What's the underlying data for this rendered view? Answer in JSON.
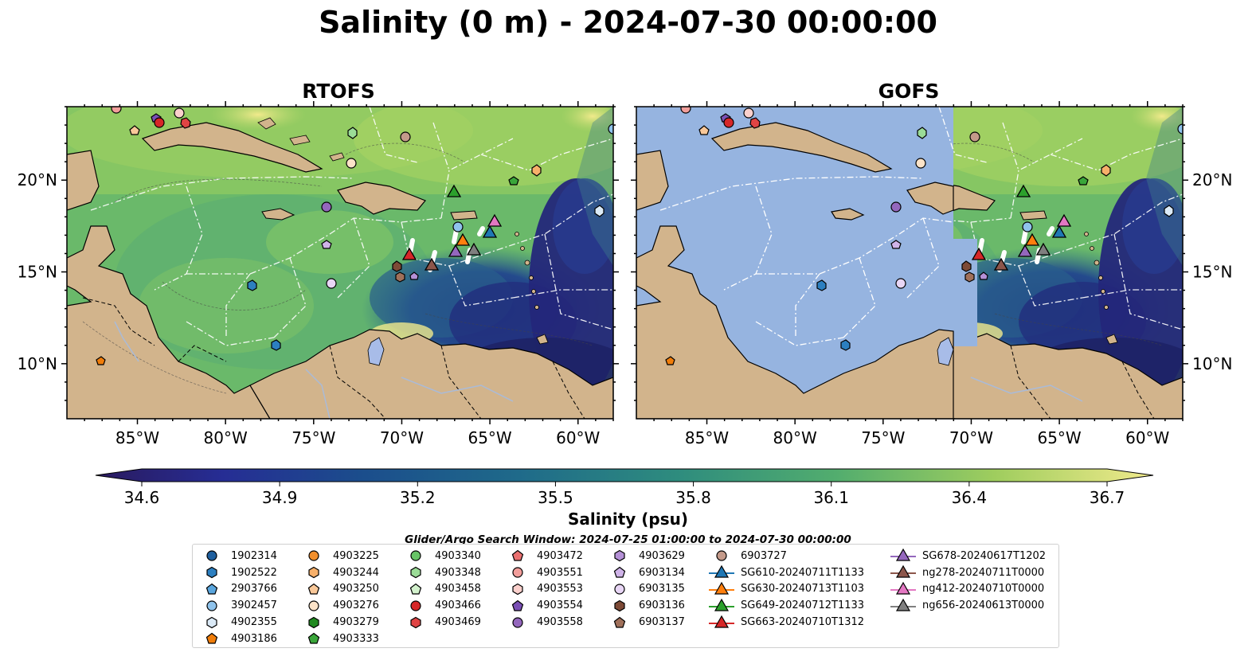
{
  "title": "Salinity (0 m) - 2024-07-30 00:00:00",
  "panels": [
    {
      "title": "RTOFS"
    },
    {
      "title": "GOFS"
    }
  ],
  "lon_labels": [
    "85°W",
    "80°W",
    "75°W",
    "70°W",
    "65°W",
    "60°W"
  ],
  "lat_labels": [
    "20°N",
    "15°N",
    "10°N"
  ],
  "colorbar": {
    "ticks": [
      "34.6",
      "34.9",
      "35.2",
      "35.5",
      "35.8",
      "36.1",
      "36.4",
      "36.7"
    ],
    "label": "Salinity (psu)",
    "vmin": 34.6,
    "vmax": 36.7,
    "colormap": "haline",
    "extend": "both"
  },
  "search_window": "Glider/Argo Search Window: 2024-07-25 01:00:00 to 2024-07-30 00:00:00",
  "legend": [
    {
      "label": "1902314",
      "marker": "circle",
      "color": "#1f5f9e"
    },
    {
      "label": "1902522",
      "marker": "hexagon",
      "color": "#2c7fc0"
    },
    {
      "label": "2903766",
      "marker": "pentagon",
      "color": "#5aa6de"
    },
    {
      "label": "3902457",
      "marker": "circle",
      "color": "#8fc3ec"
    },
    {
      "label": "4902355",
      "marker": "hexagon",
      "color": "#dbeaf7"
    },
    {
      "label": "4903186",
      "marker": "pentagon",
      "color": "#f07d0a"
    },
    {
      "label": "4903225",
      "marker": "circle",
      "color": "#f28f2c"
    },
    {
      "label": "4903244",
      "marker": "hexagon",
      "color": "#f7b06a"
    },
    {
      "label": "4903250",
      "marker": "pentagon",
      "color": "#f9c899"
    },
    {
      "label": "4903276",
      "marker": "circle",
      "color": "#fce3c8"
    },
    {
      "label": "4903279",
      "marker": "hexagon",
      "color": "#218a21"
    },
    {
      "label": "4903333",
      "marker": "pentagon",
      "color": "#3aa63a"
    },
    {
      "label": "4903340",
      "marker": "circle",
      "color": "#68c467"
    },
    {
      "label": "4903348",
      "marker": "hexagon",
      "color": "#9bdc97"
    },
    {
      "label": "4903458",
      "marker": "pentagon",
      "color": "#d3f2cd"
    },
    {
      "label": "4903466",
      "marker": "circle",
      "color": "#d62728"
    },
    {
      "label": "4903469",
      "marker": "hexagon",
      "color": "#e04444"
    },
    {
      "label": "4903472",
      "marker": "pentagon",
      "color": "#ea7070"
    },
    {
      "label": "4903551",
      "marker": "circle",
      "color": "#f29e9b"
    },
    {
      "label": "4903553",
      "marker": "hexagon",
      "color": "#fbd0cc"
    },
    {
      "label": "4903554",
      "marker": "pentagon",
      "color": "#7a4fb5"
    },
    {
      "label": "4903558",
      "marker": "circle",
      "color": "#9467bd"
    },
    {
      "label": "4903629",
      "marker": "hexagon",
      "color": "#b490d6"
    },
    {
      "label": "6903134",
      "marker": "pentagon",
      "color": "#cfb3e8"
    },
    {
      "label": "6903135",
      "marker": "circle",
      "color": "#e8d6f5"
    },
    {
      "label": "6903136",
      "marker": "hexagon",
      "color": "#7d4a36"
    },
    {
      "label": "6903137",
      "marker": "pentagon",
      "color": "#a0705a"
    },
    {
      "label": "6903727",
      "marker": "circle",
      "color": "#c49a8a"
    },
    {
      "label": "SG610-20240711T1133",
      "marker": "triangle-line",
      "color": "#1f77b4"
    },
    {
      "label": "SG630-20240713T1103",
      "marker": "triangle-line",
      "color": "#ff7f0e"
    },
    {
      "label": "SG649-20240712T1133",
      "marker": "triangle-line",
      "color": "#2ca02c"
    },
    {
      "label": "SG663-20240710T1312",
      "marker": "triangle-line",
      "color": "#d62728"
    },
    {
      "label": "SG678-20240617T1202",
      "marker": "triangle-line",
      "color": "#9467bd"
    },
    {
      "label": "ng278-20240711T0000",
      "marker": "triangle-line",
      "color": "#8c564b"
    },
    {
      "label": "ng412-20240710T0000",
      "marker": "triangle-line",
      "color": "#e377c2"
    },
    {
      "label": "ng656-20240613T0000",
      "marker": "triangle-line",
      "color": "#7f7f7f"
    }
  ],
  "map_extent": {
    "lon": [
      -89,
      -58
    ],
    "lat": [
      7,
      24
    ]
  },
  "colors": {
    "land": "#d2b48c",
    "gofs_mask": "#96b4e0",
    "lakes": "#a8bce8"
  }
}
